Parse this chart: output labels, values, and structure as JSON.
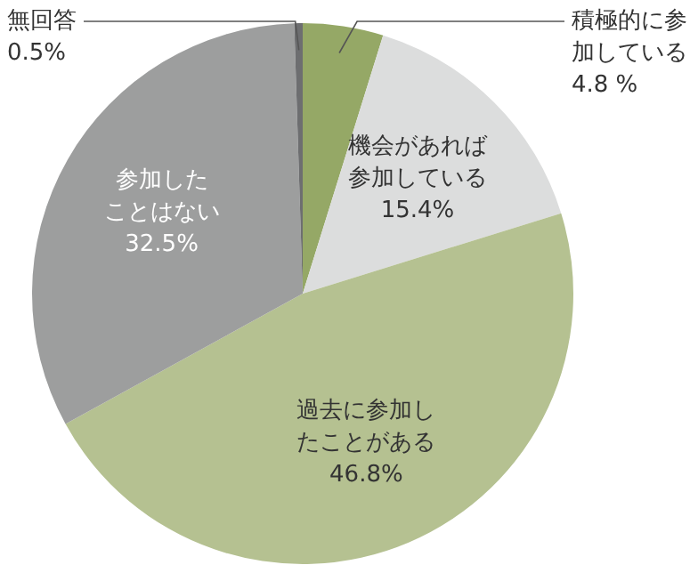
{
  "chart_data": {
    "type": "pie",
    "categories": [
      "積極的に参加している",
      "機会があれば参加している",
      "過去に参加したことがある",
      "参加したことはない",
      "無回答"
    ],
    "values": [
      4.8,
      15.4,
      46.8,
      32.5,
      0.5
    ],
    "value_labels": [
      "4.8 %",
      "15.4%",
      "46.8%",
      "32.5%",
      "0.5%"
    ],
    "colors": [
      "#95a866",
      "#dcdddd",
      "#b5c191",
      "#9d9e9e",
      "#6d6e70"
    ],
    "legend": false
  }
}
